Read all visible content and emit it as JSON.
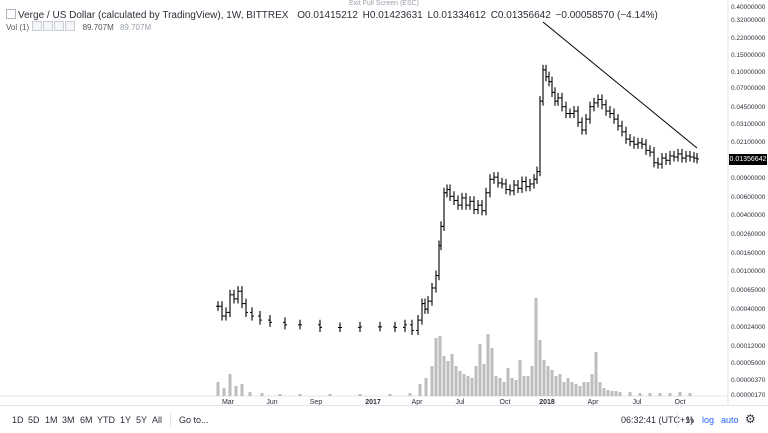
{
  "window": {
    "exit_hint": "Exit Full Screen (ESC)"
  },
  "legend": {
    "symbol": "Verge / US Dollar (calculated by TradingView), 1W, BITTREX",
    "open": "O0.01415212",
    "high": "H0.01423631",
    "low": "L0.01334612",
    "close": "C0.01356642",
    "change": "−0.00058570 (−4.14%)"
  },
  "volume_legend": {
    "label": "Vol (1)",
    "value": "89.707M",
    "value2": "89.707M"
  },
  "price_axis": {
    "ticks": [
      "0.40000000",
      "0.32000000",
      "0.22000000",
      "0.15000000",
      "0.10000000",
      "0.07000000",
      "0.04500000",
      "0.03100000",
      "0.02100000",
      "0.01356642",
      "0.00900000",
      "0.00600000",
      "0.00400000",
      "0.00260000",
      "0.00160000",
      "0.00100000",
      "0.00065000",
      "0.00040000",
      "0.00024000",
      "0.00012000",
      "0.00005000",
      "0.00000370",
      "0.00000170"
    ],
    "last_price": "0.01356642"
  },
  "time_axis": {
    "labels": [
      "Mar",
      "Jun",
      "Sep",
      "2017",
      "Apr",
      "Jul",
      "Oct",
      "2018",
      "Apr",
      "Jul",
      "Oct"
    ]
  },
  "bottom_bar": {
    "ranges": [
      "1D",
      "5D",
      "1M",
      "3M",
      "6M",
      "YTD",
      "1Y",
      "5Y",
      "All"
    ],
    "goto": "Go to...",
    "clock": "06:32:41 (UTC+1)",
    "percent": "%",
    "log": "log",
    "auto": "auto"
  },
  "colors": {
    "bars": "#000000",
    "volume": "#bdbdbd",
    "trendline": "#000000",
    "accent": "#2962ff"
  },
  "chart_data": {
    "type": "ohlc",
    "symbol": "XVG/USD",
    "interval": "1W",
    "scale": "log",
    "x": [
      "2016-02",
      "2016-03",
      "2016-04",
      "2016-05",
      "2016-06",
      "2016-07",
      "2016-08",
      "2016-09",
      "2016-10",
      "2016-11",
      "2016-12",
      "2017-01",
      "2017-02",
      "2017-03",
      "2017-04",
      "2017-05",
      "2017-06",
      "2017-07",
      "2017-08",
      "2017-09",
      "2017-10",
      "2017-11",
      "2017-12",
      "2018-01",
      "2018-02",
      "2018-03",
      "2018-04",
      "2018-05",
      "2018-06",
      "2018-07",
      "2018-08",
      "2018-09",
      "2018-10",
      "2018-11"
    ],
    "series": [
      {
        "close": [
          9e-05,
          0.00018,
          9e-05,
          7e-05,
          7e-05,
          7e-05,
          6e-05,
          6e-05,
          6e-05,
          6e-05,
          6e-05,
          6e-05,
          6e-05,
          7e-05,
          0.0002,
          0.003,
          0.0035,
          0.0032,
          0.005,
          0.0055,
          0.006,
          0.008,
          0.1,
          0.2,
          0.1,
          0.05,
          0.08,
          0.05,
          0.03,
          0.018,
          0.014,
          0.015,
          0.016,
          0.0136
        ]
      },
      {
        "volume": [
          20,
          60,
          25,
          10,
          8,
          6,
          5,
          5,
          5,
          5,
          6,
          6,
          7,
          10,
          20,
          80,
          60,
          50,
          40,
          50,
          70,
          40,
          150,
          100,
          60,
          40,
          90,
          40,
          30,
          20,
          10,
          10,
          8,
          6
        ]
      }
    ],
    "trendline": [
      [
        "2017-12",
        0.3
      ],
      [
        "2018-11",
        0.019
      ]
    ],
    "last": 0.01356642
  }
}
